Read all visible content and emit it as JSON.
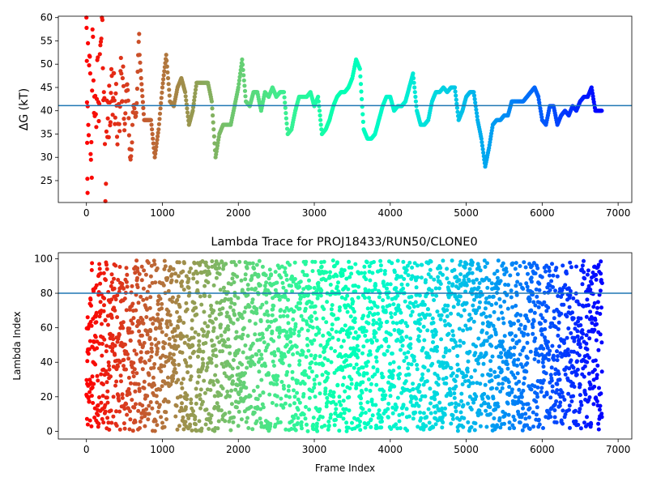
{
  "chart_data": [
    {
      "type": "scatter",
      "title": "",
      "xlabel": "",
      "ylabel": "ΔG (kT)",
      "xlim": [
        -370,
        7180
      ],
      "ylim": [
        20.3,
        60.3
      ],
      "xticks": [
        0,
        1000,
        2000,
        3000,
        4000,
        5000,
        6000,
        7000
      ],
      "yticks": [
        25,
        30,
        35,
        40,
        45,
        50,
        55,
        60
      ],
      "grid": false,
      "colormap": "rainbow (reversed: red at frame 0 to violet at final frame)",
      "hline": {
        "y": 41.1,
        "color": "#1f77b4"
      },
      "series": [
        {
          "points_sampled": [
            [
              0,
              60
            ],
            [
              5,
              46
            ],
            [
              10,
              38
            ],
            [
              15,
              22
            ],
            [
              20,
              50
            ],
            [
              30,
              34
            ],
            [
              40,
              57
            ],
            [
              50,
              44
            ],
            [
              60,
              28
            ],
            [
              70,
              31
            ],
            [
              80,
              54
            ],
            [
              100,
              45
            ],
            [
              110,
              36
            ],
            [
              130,
              42
            ],
            [
              150,
              48
            ],
            [
              170,
              40
            ],
            [
              190,
              60
            ],
            [
              210,
              55
            ],
            [
              230,
              44
            ],
            [
              250,
              24
            ],
            [
              270,
              37
            ],
            [
              300,
              40
            ],
            [
              340,
              45
            ],
            [
              380,
              42
            ],
            [
              420,
              36
            ],
            [
              460,
              48
            ],
            [
              500,
              41
            ],
            [
              550,
              40
            ],
            [
              600,
              31
            ],
            [
              650,
              44
            ],
            [
              700,
              52
            ],
            [
              720,
              47
            ],
            [
              760,
              38
            ],
            [
              800,
              38
            ],
            [
              850,
              38
            ],
            [
              900,
              30
            ],
            [
              950,
              36
            ],
            [
              1000,
              45
            ],
            [
              1050,
              52
            ],
            [
              1100,
              42
            ],
            [
              1150,
              41
            ],
            [
              1200,
              45
            ],
            [
              1250,
              47
            ],
            [
              1300,
              44
            ],
            [
              1350,
              37
            ],
            [
              1400,
              40
            ],
            [
              1450,
              46
            ],
            [
              1500,
              46
            ],
            [
              1550,
              46
            ],
            [
              1600,
              46
            ],
            [
              1650,
              42
            ],
            [
              1700,
              30
            ],
            [
              1750,
              35
            ],
            [
              1800,
              37
            ],
            [
              1850,
              37
            ],
            [
              1900,
              37
            ],
            [
              1950,
              41
            ],
            [
              2000,
              45
            ],
            [
              2050,
              51
            ],
            [
              2100,
              42
            ],
            [
              2150,
              41
            ],
            [
              2200,
              44
            ],
            [
              2250,
              44
            ],
            [
              2300,
              40
            ],
            [
              2350,
              44
            ],
            [
              2400,
              43
            ],
            [
              2450,
              45
            ],
            [
              2500,
              43
            ],
            [
              2550,
              44
            ],
            [
              2600,
              44
            ],
            [
              2650,
              35
            ],
            [
              2700,
              36
            ],
            [
              2750,
              40
            ],
            [
              2800,
              43
            ],
            [
              2850,
              43
            ],
            [
              2900,
              43
            ],
            [
              2950,
              44
            ],
            [
              3000,
              41
            ],
            [
              3050,
              43
            ],
            [
              3100,
              35
            ],
            [
              3150,
              36
            ],
            [
              3200,
              38
            ],
            [
              3250,
              41
            ],
            [
              3300,
              43
            ],
            [
              3350,
              44
            ],
            [
              3400,
              44
            ],
            [
              3450,
              45
            ],
            [
              3500,
              47
            ],
            [
              3550,
              51
            ],
            [
              3600,
              49
            ],
            [
              3650,
              36
            ],
            [
              3700,
              34
            ],
            [
              3750,
              34
            ],
            [
              3800,
              35
            ],
            [
              3850,
              38
            ],
            [
              3900,
              41
            ],
            [
              3950,
              43
            ],
            [
              4000,
              43
            ],
            [
              4050,
              40
            ],
            [
              4100,
              41
            ],
            [
              4150,
              41
            ],
            [
              4200,
              42
            ],
            [
              4250,
              45
            ],
            [
              4300,
              48
            ],
            [
              4350,
              40
            ],
            [
              4400,
              37
            ],
            [
              4450,
              37
            ],
            [
              4500,
              38
            ],
            [
              4550,
              42
            ],
            [
              4600,
              44
            ],
            [
              4650,
              44
            ],
            [
              4700,
              45
            ],
            [
              4750,
              44
            ],
            [
              4800,
              45
            ],
            [
              4850,
              45
            ],
            [
              4900,
              38
            ],
            [
              4950,
              40
            ],
            [
              5000,
              43
            ],
            [
              5050,
              44
            ],
            [
              5100,
              44
            ],
            [
              5150,
              38
            ],
            [
              5200,
              34
            ],
            [
              5250,
              28
            ],
            [
              5300,
              32
            ],
            [
              5350,
              37
            ],
            [
              5400,
              38
            ],
            [
              5450,
              38
            ],
            [
              5500,
              39
            ],
            [
              5550,
              39
            ],
            [
              5600,
              42
            ],
            [
              5650,
              42
            ],
            [
              5700,
              42
            ],
            [
              5750,
              42
            ],
            [
              5800,
              43
            ],
            [
              5850,
              44
            ],
            [
              5900,
              45
            ],
            [
              5950,
              43
            ],
            [
              6000,
              38
            ],
            [
              6050,
              37
            ],
            [
              6100,
              41
            ],
            [
              6150,
              41
            ],
            [
              6200,
              37
            ],
            [
              6250,
              39
            ],
            [
              6300,
              40
            ],
            [
              6350,
              39
            ],
            [
              6400,
              41
            ],
            [
              6450,
              40
            ],
            [
              6500,
              42
            ],
            [
              6550,
              43
            ],
            [
              6600,
              43
            ],
            [
              6650,
              45
            ],
            [
              6700,
              40
            ],
            [
              6750,
              40
            ],
            [
              6790,
              40
            ]
          ]
        }
      ]
    },
    {
      "type": "scatter",
      "title": "Lambda Trace for PROJ18433/RUN50/CLONE0",
      "xlabel": "Frame Index",
      "ylabel": "Lambda Index",
      "xlim": [
        -370,
        7180
      ],
      "ylim": [
        -4.5,
        103.5
      ],
      "xticks": [
        0,
        1000,
        2000,
        3000,
        4000,
        5000,
        6000,
        7000
      ],
      "yticks": [
        0,
        20,
        40,
        60,
        80,
        100
      ],
      "grid": false,
      "colormap": "rainbow (reversed: red at frame 0 to violet at final frame)",
      "hline": {
        "y": 80,
        "color": "#1f77b4"
      },
      "series": [
        {
          "frame_max": 6790,
          "lambda_min": 0,
          "lambda_max": 99
        }
      ]
    }
  ]
}
